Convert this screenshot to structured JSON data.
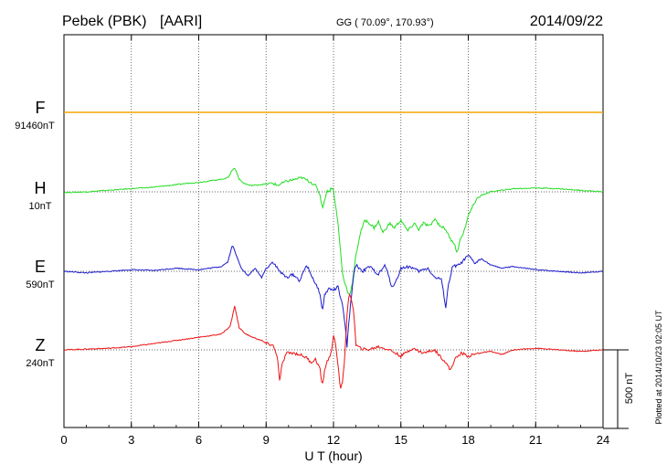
{
  "chart_data": {
    "type": "line",
    "station": "Pebek (PBK)",
    "institute": "[AARI]",
    "coords": "GG ( 70.09°, 170.93°)",
    "date": "2014/09/22",
    "xlabel": "U T (hour)",
    "xlim": [
      0,
      24
    ],
    "xticks": [
      "0",
      "3",
      "6",
      "9",
      "12",
      "15",
      "18",
      "21",
      "24"
    ],
    "grid": true,
    "scale_label": "500 nT",
    "scale_nT": 500,
    "plotted_note": "Plotted at 2014/10/23 02:05 UT",
    "series": [
      {
        "name": "F",
        "baseline": "91460nT",
        "color": "#f5a500",
        "x": [
          0,
          24
        ],
        "y": [
          0,
          0
        ]
      },
      {
        "name": "H",
        "baseline": "10nT",
        "color": "#22dd22",
        "x": [
          0,
          1,
          2,
          3,
          4,
          5,
          5.5,
          6,
          6.5,
          7,
          7.3,
          7.5,
          7.6,
          7.7,
          7.8,
          8,
          8.3,
          8.7,
          9,
          9.3,
          9.5,
          9.8,
          10,
          10.3,
          10.6,
          10.8,
          11,
          11.2,
          11.4,
          11.5,
          11.6,
          11.7,
          11.8,
          11.9,
          12,
          12.2,
          12.4,
          12.5,
          12.6,
          12.7,
          12.8,
          12.9,
          13,
          13.2,
          13.4,
          13.6,
          13.8,
          14,
          14.2,
          14.5,
          14.7,
          15,
          15.3,
          15.6,
          15.8,
          16,
          16.3,
          16.5,
          16.7,
          17,
          17.2,
          17.4,
          17.5,
          17.6,
          17.8,
          18,
          18.3,
          18.6,
          19,
          19.5,
          20,
          21,
          22,
          23,
          24
        ],
        "y": [
          -5,
          0,
          10,
          20,
          30,
          45,
          55,
          60,
          70,
          80,
          90,
          140,
          150,
          120,
          80,
          55,
          40,
          45,
          50,
          55,
          40,
          60,
          70,
          80,
          90,
          75,
          60,
          40,
          -20,
          -100,
          -60,
          10,
          0,
          30,
          10,
          -200,
          -520,
          -580,
          -620,
          -660,
          -610,
          -520,
          -400,
          -260,
          -180,
          -200,
          -230,
          -190,
          -260,
          -200,
          -230,
          -180,
          -250,
          -200,
          -240,
          -200,
          -220,
          -170,
          -210,
          -240,
          -300,
          -330,
          -400,
          -320,
          -260,
          -150,
          -60,
          -20,
          0,
          10,
          20,
          25,
          20,
          10,
          0
        ]
      },
      {
        "name": "E",
        "baseline": "590nT",
        "color": "#1a1acc",
        "x": [
          0,
          1,
          2,
          3,
          4,
          5,
          6,
          7,
          7.3,
          7.5,
          7.7,
          7.9,
          8.2,
          8.5,
          8.8,
          9,
          9.3,
          9.6,
          9.9,
          10.2,
          10.5,
          10.8,
          11,
          11.2,
          11.4,
          11.5,
          11.6,
          11.8,
          12,
          12.2,
          12.4,
          12.5,
          12.6,
          12.7,
          12.8,
          12.9,
          13,
          13.3,
          13.6,
          14,
          14.3,
          14.6,
          14.8,
          15,
          15.4,
          15.8,
          16.2,
          16.5,
          16.8,
          17,
          17.1,
          17.3,
          17.6,
          18,
          18.3,
          18.6,
          19,
          19.5,
          20,
          21,
          22,
          23,
          24
        ],
        "y": [
          0,
          -10,
          0,
          10,
          5,
          20,
          10,
          30,
          60,
          170,
          90,
          20,
          -30,
          20,
          -40,
          20,
          60,
          0,
          -40,
          -20,
          -60,
          40,
          -20,
          -80,
          -140,
          -260,
          -150,
          -110,
          -120,
          -100,
          -220,
          -320,
          -480,
          -300,
          -150,
          -20,
          40,
          0,
          30,
          -20,
          40,
          -100,
          -60,
          20,
          30,
          0,
          20,
          -40,
          -50,
          -230,
          -100,
          30,
          40,
          100,
          50,
          80,
          40,
          20,
          30,
          10,
          0,
          -10,
          0
        ]
      },
      {
        "name": "Z",
        "baseline": "240nT",
        "color": "#ee1111",
        "x": [
          0,
          1,
          2,
          3,
          4,
          5,
          6,
          7,
          7.4,
          7.6,
          7.8,
          8.1,
          8.4,
          8.8,
          9,
          9.3,
          9.5,
          9.6,
          9.7,
          9.9,
          10.2,
          10.5,
          10.8,
          11,
          11.2,
          11.4,
          11.5,
          11.6,
          11.7,
          11.9,
          12,
          12.1,
          12.2,
          12.3,
          12.4,
          12.5,
          12.6,
          12.7,
          12.8,
          12.9,
          13,
          13.2,
          13.5,
          14,
          14.5,
          15,
          15.5,
          16,
          16.5,
          17,
          17.2,
          17.4,
          17.7,
          18,
          18.5,
          19,
          19.5,
          20,
          21,
          22,
          23,
          24
        ],
        "y": [
          0,
          5,
          10,
          20,
          40,
          60,
          80,
          100,
          150,
          280,
          140,
          100,
          80,
          60,
          40,
          30,
          -40,
          -200,
          -100,
          -20,
          -20,
          -30,
          -50,
          -80,
          -60,
          -120,
          -240,
          -130,
          -80,
          -20,
          100,
          20,
          -90,
          -250,
          -200,
          -50,
          230,
          350,
          320,
          250,
          30,
          10,
          0,
          20,
          0,
          -40,
          10,
          -20,
          0,
          -80,
          -130,
          -60,
          -20,
          -40,
          -20,
          -10,
          -30,
          0,
          10,
          0,
          -10,
          0
        ]
      }
    ]
  }
}
